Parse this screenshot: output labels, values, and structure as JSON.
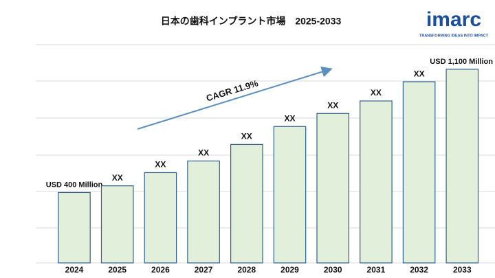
{
  "chart_data": {
    "type": "bar",
    "title": "日本の歯科インプラント市場　2025-2033",
    "logo": "imarc",
    "logo_tagline": "TRANSFORMING IDEAS INTO IMPACT",
    "annotation": "CAGR 11.9%",
    "categories": [
      "2024",
      "2025",
      "2026",
      "2027",
      "2028",
      "2029",
      "2030",
      "2031",
      "2032",
      "2033"
    ],
    "values": [
      400,
      438,
      513,
      579,
      673,
      775,
      849,
      920,
      1029,
      1100
    ],
    "value_labels": [
      "USD 400 Million",
      "XX",
      "XX",
      "XX",
      "XX",
      "XX",
      "XX",
      "XX",
      "XX",
      "USD 1,100 Million"
    ],
    "color": "#e2efda",
    "edge_color": "#2f5f8f",
    "ylim": [
      0,
      1240
    ]
  }
}
